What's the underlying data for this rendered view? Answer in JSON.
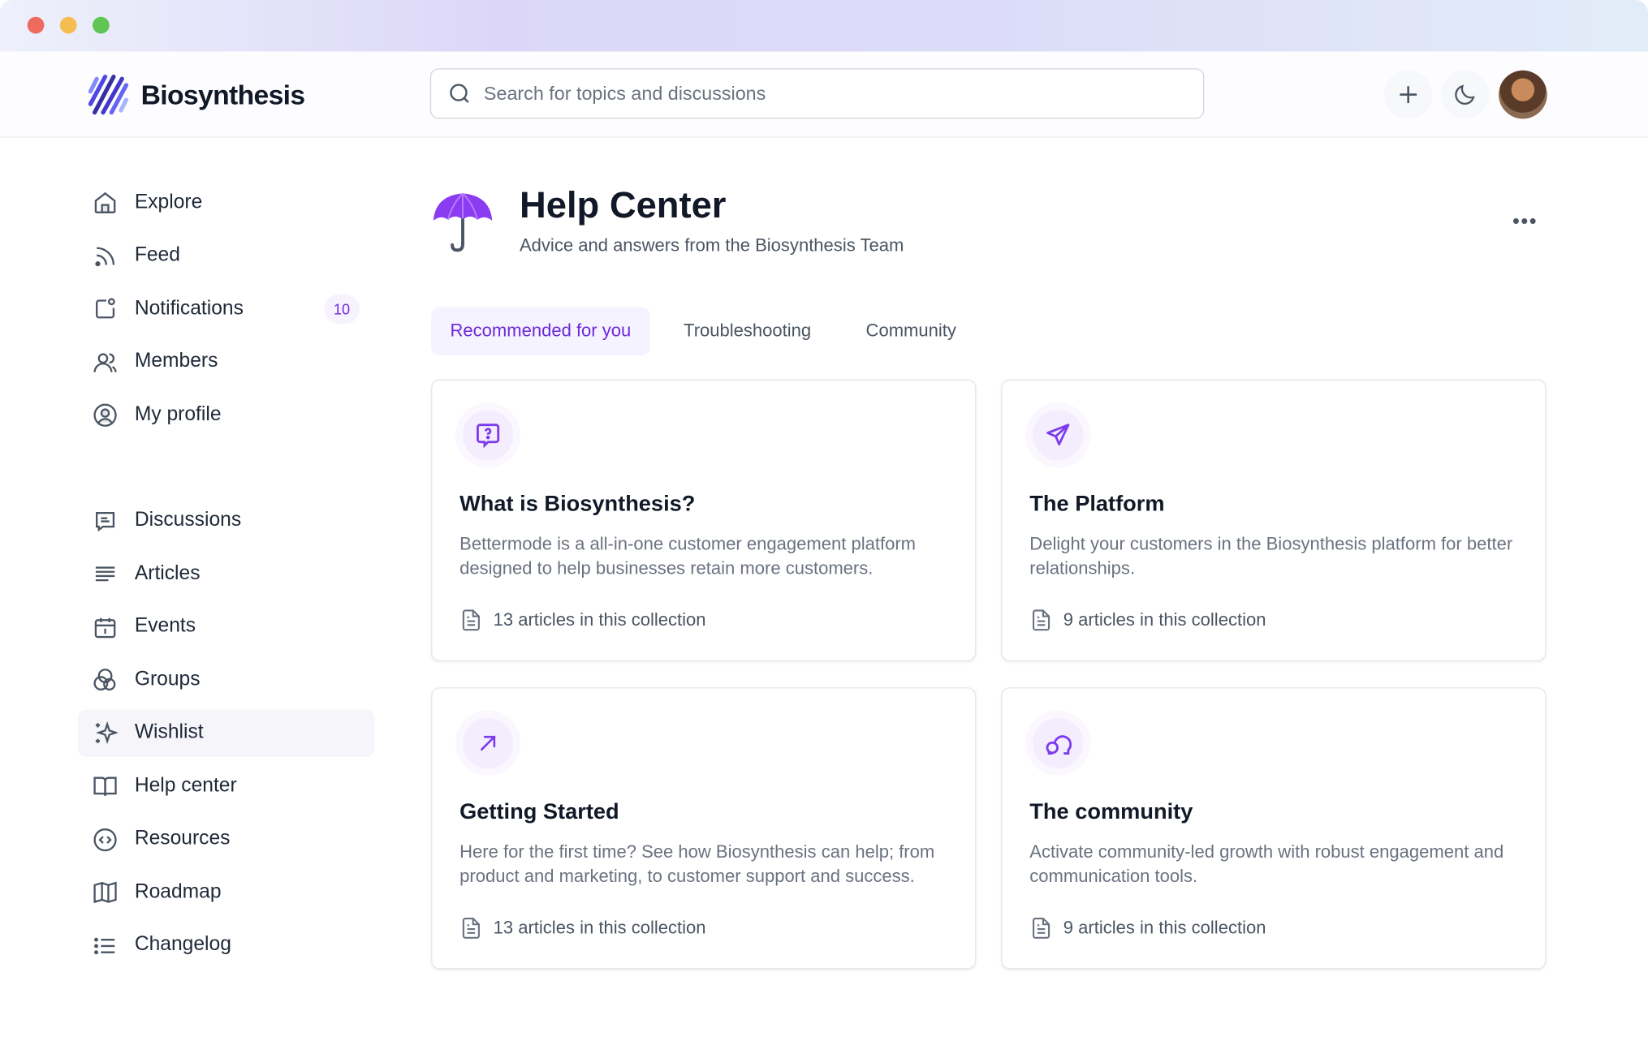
{
  "window": {
    "controls": [
      "close",
      "minimize",
      "maximize"
    ],
    "colors": {
      "close": "#ee6a5f",
      "minimize": "#f5bd4f",
      "maximize": "#61c554"
    }
  },
  "header": {
    "brand": "Biosynthesis",
    "search": {
      "placeholder": "Search for topics and discussions",
      "value": ""
    },
    "actions": [
      {
        "icon": "plus-icon"
      },
      {
        "icon": "moon-icon"
      },
      {
        "icon": "avatar"
      }
    ]
  },
  "sidebar": {
    "primary": [
      {
        "label": "Explore",
        "icon": "home-icon"
      },
      {
        "label": "Feed",
        "icon": "rss-icon"
      },
      {
        "label": "Notifications",
        "icon": "notification-icon",
        "badge": "10"
      },
      {
        "label": "Members",
        "icon": "users-icon"
      },
      {
        "label": "My profile",
        "icon": "user-circle-icon"
      }
    ],
    "secondary": [
      {
        "label": "Discussions",
        "icon": "message-icon"
      },
      {
        "label": "Articles",
        "icon": "align-left-icon"
      },
      {
        "label": "Events",
        "icon": "calendar-icon"
      },
      {
        "label": "Groups",
        "icon": "groups-icon"
      },
      {
        "label": "Wishlist",
        "icon": "sparkles-icon",
        "active": true
      },
      {
        "label": "Help center",
        "icon": "book-icon"
      },
      {
        "label": "Resources",
        "icon": "code-circle-icon"
      },
      {
        "label": "Roadmap",
        "icon": "map-icon"
      },
      {
        "label": "Changelog",
        "icon": "list-icon"
      }
    ]
  },
  "page": {
    "title": "Help Center",
    "subtitle": "Advice and answers from the Biosynthesis Team",
    "icon": "umbrella-icon",
    "tabs": [
      {
        "label": "Recommended for you",
        "active": true
      },
      {
        "label": "Troubleshooting"
      },
      {
        "label": "Community"
      }
    ],
    "cards": [
      {
        "title": "What is Biosynthesis?",
        "description": "Bettermode is a all-in-one customer engagement platform designed to help businesses retain more customers.",
        "footer": "13 articles in this collection",
        "icon": "message-question-icon"
      },
      {
        "title": "The Platform",
        "description": "Delight your customers in the Biosynthesis platform for better relationships.",
        "footer": "9 articles in this collection",
        "icon": "send-icon"
      },
      {
        "title": "Getting Started",
        "description": "Here for the first time? See how Biosynthesis can help; from product and marketing, to customer support and success.",
        "footer": "13 articles in this collection",
        "icon": "arrow-up-right-icon"
      },
      {
        "title": "The community",
        "description": "Activate community-led growth with robust engagement and communication tools.",
        "footer": "9 articles in this collection",
        "icon": "chat-bubbles-icon"
      }
    ]
  },
  "colors": {
    "accent": "#6d28d9",
    "accent_bg": "#f5f3ff",
    "text": "#111827",
    "muted": "#6b7280"
  }
}
